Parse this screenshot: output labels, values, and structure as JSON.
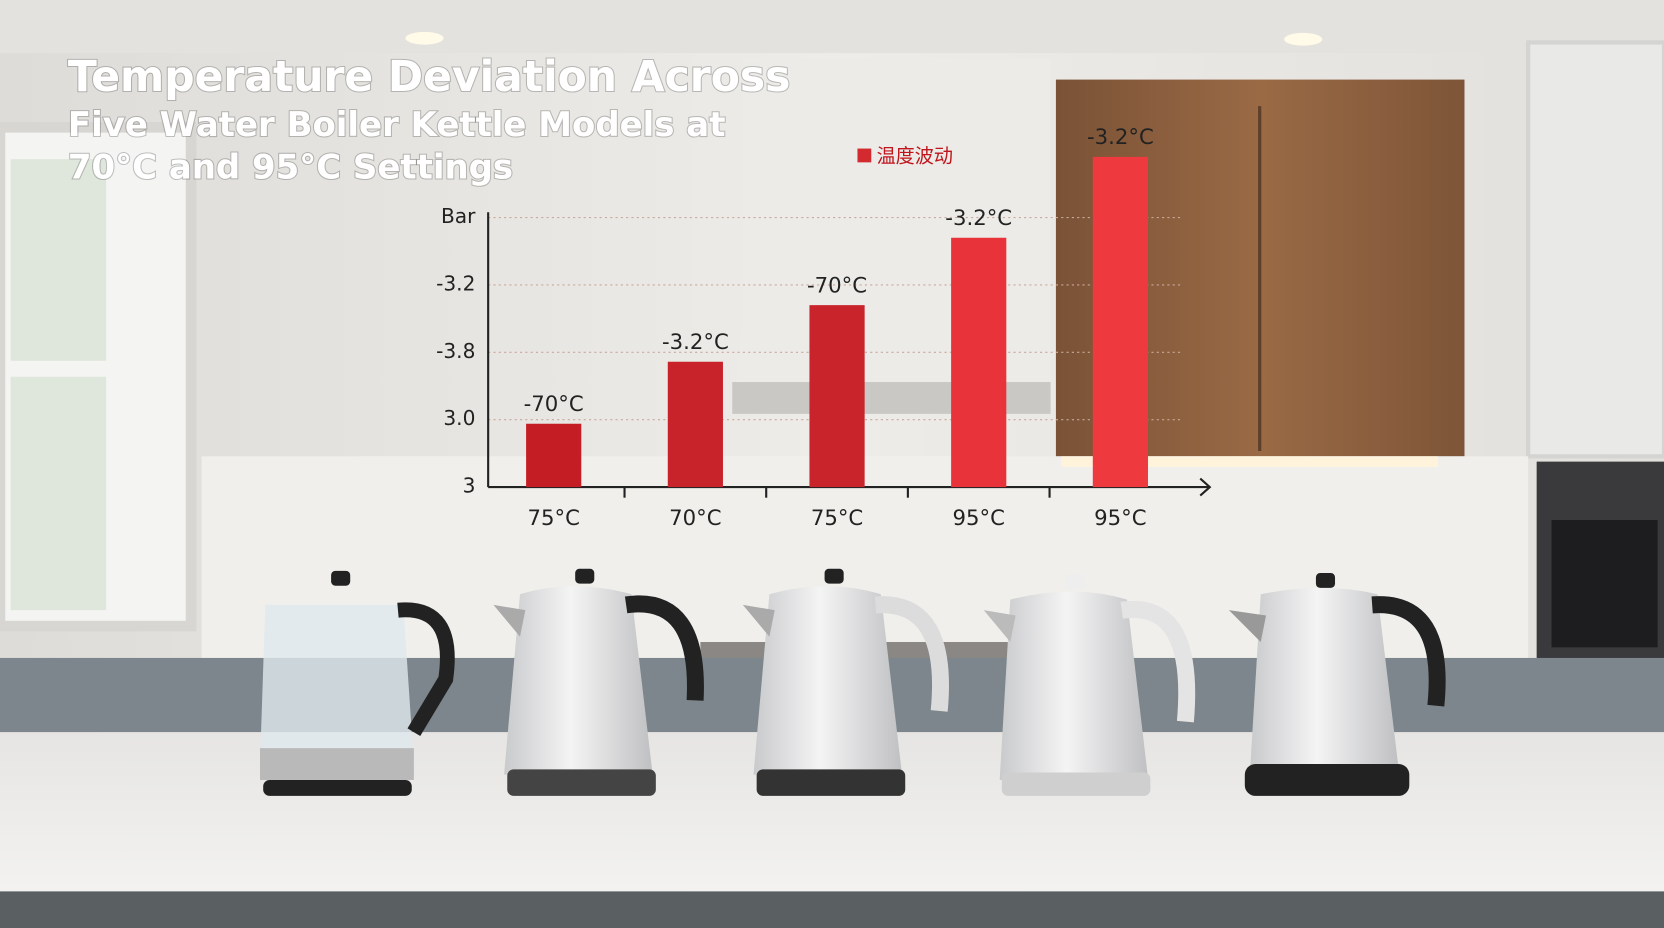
{
  "chart_data": {
    "type": "bar",
    "title": [
      "Temperature Deviation Across",
      "Five Water Boiler Kettle Models at",
      "70°C and 95°C Settings"
    ],
    "categories": [
      "75°C",
      "70°C",
      "75°C",
      "95°C",
      "95°C"
    ],
    "series": [
      {
        "name": "温度波动",
        "color": "#d32a2f",
        "colors": [
          "#c41e24",
          "#c8222a",
          "#c9232b",
          "#e8333a",
          "#ee3a3e"
        ],
        "values": [
          0.94,
          1.86,
          2.7,
          3.7,
          4.9
        ]
      }
    ],
    "annotations": [
      "-70°C",
      "-3.2°C",
      "-70°C",
      "-3.2°C",
      "-3.2°C"
    ],
    "ylim": [
      0,
      5
    ],
    "yticks": [
      {
        "value": 0,
        "label": "3"
      },
      {
        "value": 1,
        "label": "3.0"
      },
      {
        "value": 2,
        "label": "-3.8"
      },
      {
        "value": 3,
        "label": "-3.2"
      },
      {
        "value": 4,
        "label": "Bar"
      }
    ],
    "grid": true
  }
}
